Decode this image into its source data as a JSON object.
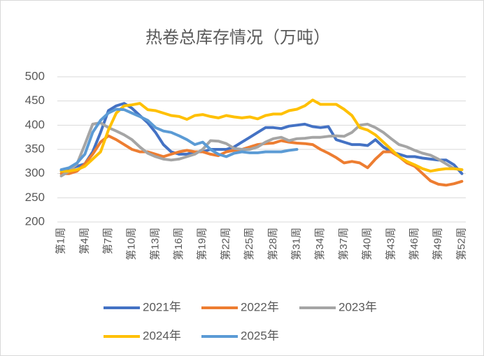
{
  "chart_data": {
    "type": "line",
    "title": "热卷总库存情况（万吨）",
    "categories": [
      "第1周",
      null,
      null,
      "第4周",
      null,
      null,
      "第7周",
      null,
      null,
      "第10周",
      null,
      null,
      "第13周",
      null,
      null,
      "第16周",
      null,
      null,
      "第19周",
      null,
      null,
      "第22周",
      null,
      null,
      "第25周",
      null,
      null,
      "第28周",
      null,
      null,
      "第31周",
      null,
      null,
      "第34周",
      null,
      null,
      "第37周",
      null,
      null,
      "第40周",
      null,
      null,
      "第43周",
      null,
      null,
      "第46周",
      null,
      null,
      "第49周",
      null,
      null,
      "第52周"
    ],
    "series": [
      {
        "name": "2021年",
        "color": "#4472c4",
        "values": [
          305,
          310,
          315,
          320,
          345,
          385,
          430,
          440,
          445,
          435,
          420,
          405,
          385,
          360,
          345,
          340,
          340,
          345,
          345,
          350,
          350,
          350,
          355,
          365,
          375,
          385,
          395,
          395,
          393,
          398,
          400,
          402,
          397,
          395,
          397,
          370,
          365,
          360,
          360,
          358,
          370,
          355,
          345,
          340,
          335,
          335,
          332,
          330,
          328,
          328,
          318,
          300
        ]
      },
      {
        "name": "2022年",
        "color": "#ed7d31",
        "values": [
          300,
          300,
          305,
          320,
          340,
          365,
          378,
          370,
          360,
          350,
          345,
          345,
          340,
          335,
          340,
          345,
          348,
          345,
          345,
          340,
          337,
          345,
          348,
          350,
          355,
          360,
          362,
          363,
          368,
          365,
          363,
          362,
          360,
          350,
          342,
          333,
          322,
          325,
          322,
          312,
          330,
          345,
          345,
          335,
          322,
          315,
          300,
          285,
          278,
          276,
          279,
          284
        ]
      },
      {
        "name": "2023年",
        "color": "#a5a5a5",
        "values": [
          295,
          305,
          320,
          360,
          402,
          405,
          395,
          388,
          380,
          370,
          355,
          342,
          335,
          330,
          328,
          330,
          335,
          340,
          350,
          368,
          367,
          362,
          352,
          350,
          350,
          355,
          365,
          372,
          375,
          368,
          372,
          373,
          375,
          375,
          377,
          378,
          377,
          385,
          400,
          402,
          395,
          385,
          372,
          360,
          355,
          348,
          342,
          338,
          330,
          320,
          310,
          308
        ]
      },
      {
        "name": "2024年",
        "color": "#ffc000",
        "values": [
          305,
          305,
          308,
          315,
          330,
          345,
          390,
          425,
          440,
          442,
          445,
          432,
          430,
          425,
          420,
          418,
          412,
          420,
          422,
          418,
          415,
          420,
          417,
          415,
          417,
          413,
          420,
          423,
          423,
          430,
          433,
          440,
          452,
          443,
          443,
          443,
          433,
          420,
          395,
          390,
          380,
          365,
          350,
          335,
          325,
          318,
          310,
          305,
          308,
          310,
          310,
          308
        ]
      },
      {
        "name": "2025年",
        "color": "#5b9bd5",
        "values": [
          308,
          312,
          322,
          340,
          385,
          410,
          425,
          433,
          432,
          425,
          418,
          410,
          395,
          388,
          385,
          378,
          370,
          360,
          365,
          350,
          340,
          335,
          342,
          345,
          343,
          343,
          345,
          345,
          345,
          348,
          350,
          null,
          null,
          null,
          null,
          null,
          null,
          null,
          null,
          null,
          null,
          null,
          null,
          null,
          null,
          null,
          null,
          null,
          null,
          null,
          null,
          null
        ]
      }
    ],
    "ylim": [
      200,
      500
    ],
    "yticks": [
      200,
      250,
      300,
      350,
      400,
      450,
      500
    ],
    "grid": true
  }
}
